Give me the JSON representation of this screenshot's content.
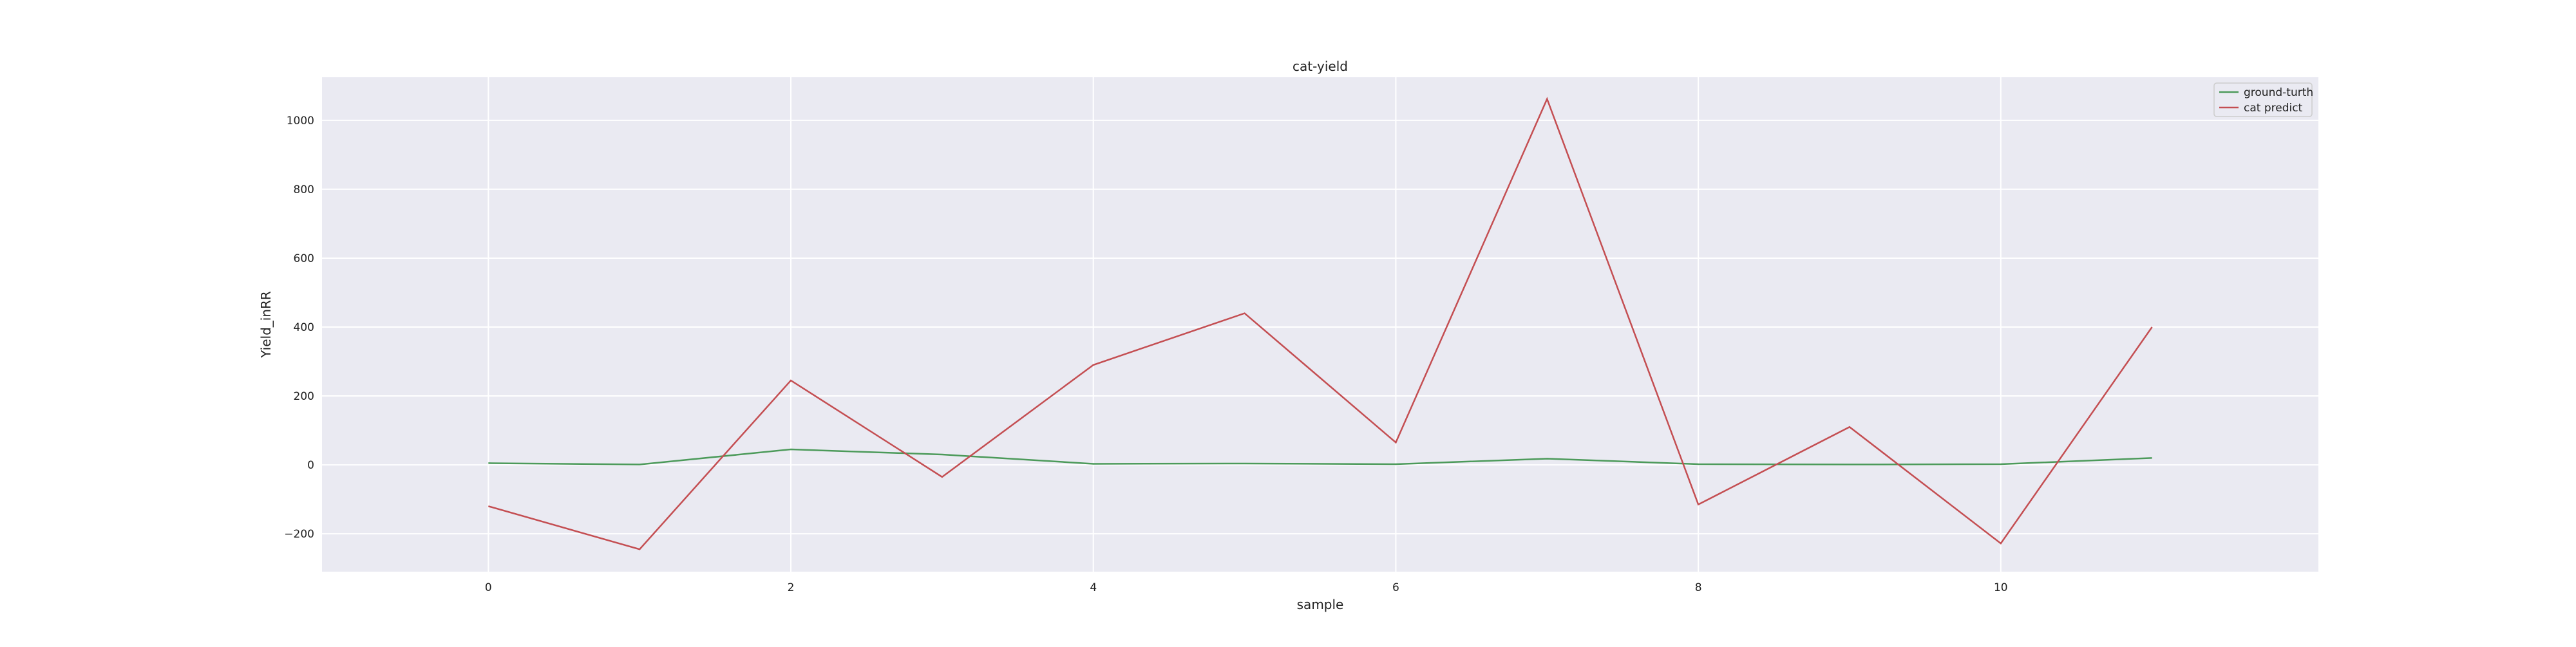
{
  "chart_data": {
    "type": "line",
    "title": "cat-yield",
    "xlabel": "sample",
    "ylabel": "Yield_inRR",
    "x": [
      0,
      1,
      2,
      3,
      4,
      5,
      6,
      7,
      8,
      9,
      10,
      11
    ],
    "series": [
      {
        "name": "ground-turth",
        "color": "#4c9a5a",
        "values": [
          5,
          1,
          45,
          30,
          3,
          4,
          2,
          18,
          2,
          1,
          2,
          20
        ]
      },
      {
        "name": "cat predict",
        "color": "#c44e52",
        "values": [
          -120,
          -245,
          245,
          -35,
          290,
          440,
          65,
          1062,
          -115,
          110,
          -228,
          400
        ]
      }
    ],
    "xlim": [
      -1.1,
      12.1
    ],
    "ylim": [
      -310,
      1125
    ],
    "xticks": [
      0,
      2,
      4,
      6,
      8,
      10
    ],
    "yticks": [
      -200,
      0,
      200,
      400,
      600,
      800,
      1000
    ],
    "ytick_labels": [
      "−200",
      "0",
      "200",
      "400",
      "600",
      "800",
      "1000"
    ],
    "grid": true,
    "legend_position": "top-right",
    "background_color": "#eaeaf2",
    "grid_color": "#ffffff"
  }
}
